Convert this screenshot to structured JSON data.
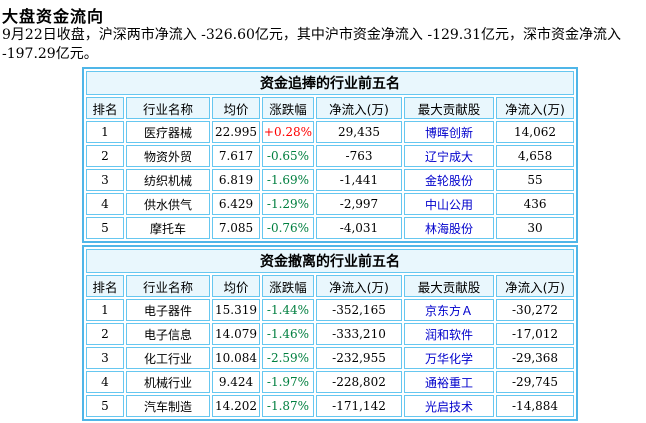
{
  "title": "大盘资金流向",
  "summary": "9月22日收盘，沪深两市净流入 -326.60亿元，其中沪市资金净流入 -129.31亿元，深市资金净流入 -197.29亿元。",
  "columns": [
    "排名",
    "行业名称",
    "均价",
    "涨跌幅",
    "净流入(万)",
    "最大贡献股",
    "净流入(万)"
  ],
  "columns_outflow": [
    "排名",
    "行业名称",
    "均价",
    "涨跌幅",
    "净流入(万)",
    "最大贡献股",
    "净流入(万)"
  ],
  "inflow": {
    "caption": "资金追捧的行业前五名",
    "rows": [
      {
        "rank": "1",
        "industry": "医疗器械",
        "price": "22.995",
        "change": "+0.28%",
        "net": "29,435",
        "stock": "博晖创新",
        "stock_net": "14,062",
        "dir": "up"
      },
      {
        "rank": "2",
        "industry": "物资外贸",
        "price": "7.617",
        "change": "-0.65%",
        "net": "-763",
        "stock": "辽宁成大",
        "stock_net": "4,658",
        "dir": "down"
      },
      {
        "rank": "3",
        "industry": "纺织机械",
        "price": "6.819",
        "change": "-1.69%",
        "net": "-1,441",
        "stock": "金轮股份",
        "stock_net": "55",
        "dir": "down"
      },
      {
        "rank": "4",
        "industry": "供水供气",
        "price": "6.429",
        "change": "-1.29%",
        "net": "-2,997",
        "stock": "中山公用",
        "stock_net": "436",
        "dir": "down"
      },
      {
        "rank": "5",
        "industry": "摩托车",
        "price": "7.085",
        "change": "-0.76%",
        "net": "-4,031",
        "stock": "林海股份",
        "stock_net": "30",
        "dir": "down"
      }
    ]
  },
  "outflow": {
    "caption": "资金撤离的行业前五名",
    "rows": [
      {
        "rank": "1",
        "industry": "电子器件",
        "price": "15.319",
        "change": "-1.44%",
        "net": "-352,165",
        "stock": "京东方Ａ",
        "stock_net": "-30,272",
        "dir": "down"
      },
      {
        "rank": "2",
        "industry": "电子信息",
        "price": "14.079",
        "change": "-1.46%",
        "net": "-333,210",
        "stock": "润和软件",
        "stock_net": "-17,012",
        "dir": "down"
      },
      {
        "rank": "3",
        "industry": "化工行业",
        "price": "10.084",
        "change": "-2.59%",
        "net": "-232,955",
        "stock": "万华化学",
        "stock_net": "-29,368",
        "dir": "down"
      },
      {
        "rank": "4",
        "industry": "机械行业",
        "price": "9.424",
        "change": "-1.97%",
        "net": "-228,802",
        "stock": "通裕重工",
        "stock_net": "-29,745",
        "dir": "down"
      },
      {
        "rank": "5",
        "industry": "汽车制造",
        "price": "14.202",
        "change": "-1.87%",
        "net": "-171,142",
        "stock": "光启技术",
        "stock_net": "-14,884",
        "dir": "down"
      }
    ]
  },
  "colors": {
    "up": "#ff0000",
    "down": "#007f3f",
    "link": "#0000cc",
    "border": "#4fb6e8",
    "header_bg": "#e9f7fd"
  }
}
